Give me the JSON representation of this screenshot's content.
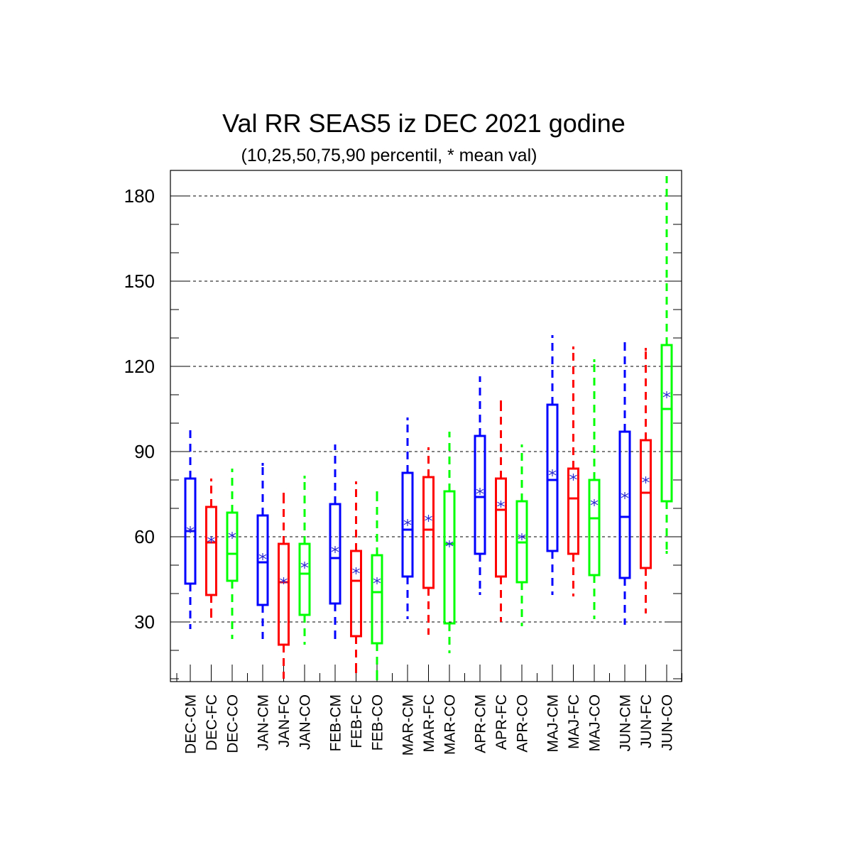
{
  "chart_data": {
    "type": "box",
    "title": "Val RR SEAS5 iz DEC 2021 godine",
    "subtitle": "(10,25,50,75,90 percentil, * mean val)",
    "xlabel": "",
    "ylabel": "",
    "ylim": [
      9,
      189
    ],
    "yticks": [
      30,
      60,
      90,
      120,
      150,
      180
    ],
    "grid": "dashed horizontal at major ticks",
    "series_colors": {
      "CM": "#0000ff",
      "FC": "#ff0000",
      "CO": "#00ff00"
    },
    "boxes": [
      {
        "label": "DEC-CM",
        "p10": 28.0,
        "p25": 43.5,
        "p50": 62.0,
        "p75": 80.5,
        "p90": 97.0,
        "mean": 62.5
      },
      {
        "label": "DEC-FC",
        "p10": 32.0,
        "p25": 39.5,
        "p50": 58.0,
        "p75": 70.5,
        "p90": 80.0,
        "mean": 59.0
      },
      {
        "label": "DEC-CO",
        "p10": 24.5,
        "p25": 44.5,
        "p50": 54.0,
        "p75": 68.5,
        "p90": 83.5,
        "mean": 60.5
      },
      {
        "label": "JAN-CM",
        "p10": 24.5,
        "p25": 36.0,
        "p50": 51.0,
        "p75": 67.5,
        "p90": 85.5,
        "mean": 53.0
      },
      {
        "label": "JAN-FC",
        "p10": 10.5,
        "p25": 22.0,
        "p50": 44.0,
        "p75": 57.5,
        "p90": 75.0,
        "mean": 44.5
      },
      {
        "label": "JAN-CO",
        "p10": 22.5,
        "p25": 32.5,
        "p50": 47.0,
        "p75": 57.5,
        "p90": 81.0,
        "mean": 50.0
      },
      {
        "label": "FEB-CM",
        "p10": 24.5,
        "p25": 36.5,
        "p50": 52.5,
        "p75": 71.5,
        "p90": 92.0,
        "mean": 55.5
      },
      {
        "label": "FEB-FC",
        "p10": 12.5,
        "p25": 25.0,
        "p50": 44.5,
        "p75": 55.0,
        "p90": 79.0,
        "mean": 48.0
      },
      {
        "label": "FEB-CO",
        "p10": 10.0,
        "p25": 22.5,
        "p50": 40.5,
        "p75": 53.5,
        "p90": 75.5,
        "mean": 44.5
      },
      {
        "label": "MAR-CM",
        "p10": 31.5,
        "p25": 46.0,
        "p50": 62.5,
        "p75": 82.5,
        "p90": 101.5,
        "mean": 65.0
      },
      {
        "label": "MAR-FC",
        "p10": 26.0,
        "p25": 42.0,
        "p50": 62.5,
        "p75": 81.0,
        "p90": 91.0,
        "mean": 66.5
      },
      {
        "label": "MAR-CO",
        "p10": 19.5,
        "p25": 29.5,
        "p50": 57.5,
        "p75": 76.0,
        "p90": 96.5,
        "mean": 57.5
      },
      {
        "label": "APR-CM",
        "p10": 40.0,
        "p25": 54.0,
        "p50": 74.0,
        "p75": 95.5,
        "p90": 116.0,
        "mean": 76.0
      },
      {
        "label": "APR-FC",
        "p10": 30.5,
        "p25": 46.0,
        "p50": 69.5,
        "p75": 80.5,
        "p90": 107.5,
        "mean": 71.5
      },
      {
        "label": "APR-CO",
        "p10": 29.0,
        "p25": 44.0,
        "p50": 58.0,
        "p75": 72.5,
        "p90": 92.0,
        "mean": 60.0
      },
      {
        "label": "MAJ-CM",
        "p10": 40.0,
        "p25": 55.0,
        "p50": 80.0,
        "p75": 106.5,
        "p90": 130.5,
        "mean": 82.5
      },
      {
        "label": "MAJ-FC",
        "p10": 39.5,
        "p25": 54.0,
        "p50": 73.5,
        "p75": 84.0,
        "p90": 126.5,
        "mean": 81.0
      },
      {
        "label": "MAJ-CO",
        "p10": 31.5,
        "p25": 46.5,
        "p50": 66.5,
        "p75": 80.0,
        "p90": 122.0,
        "mean": 72.0
      },
      {
        "label": "JUN-CM",
        "p10": 29.5,
        "p25": 45.5,
        "p50": 67.0,
        "p75": 97.0,
        "p90": 128.0,
        "mean": 74.5
      },
      {
        "label": "JUN-FC",
        "p10": 33.5,
        "p25": 49.0,
        "p50": 75.5,
        "p75": 94.0,
        "p90": 126.0,
        "mean": 80.0
      },
      {
        "label": "JUN-CO",
        "p10": 54.5,
        "p25": 72.5,
        "p50": 105.0,
        "p75": 127.5,
        "p90": 186.5,
        "mean": 110.0
      }
    ]
  }
}
